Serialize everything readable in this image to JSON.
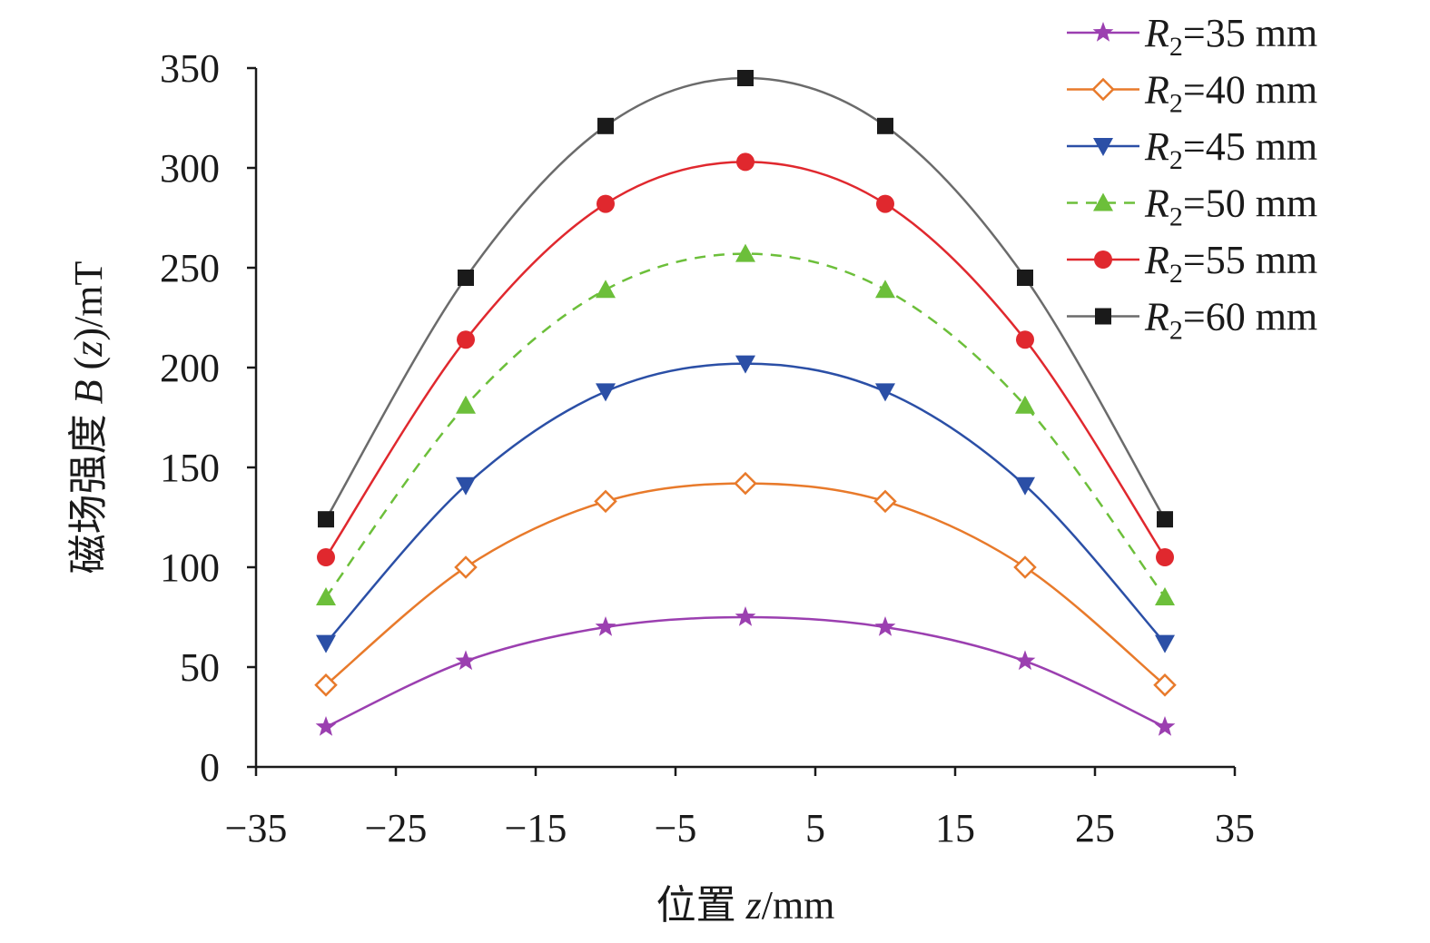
{
  "chart_data": {
    "type": "line",
    "title": "",
    "xlabel": "位置 z/mm",
    "xlabel_prefix": "位置 ",
    "xlabel_var": "z",
    "xlabel_unit": "/mm",
    "ylabel": "磁场强度 B (z)/mT",
    "ylabel_prefix": "磁场强度 ",
    "ylabel_var": "B",
    "ylabel_open": " (",
    "ylabel_var2": "z",
    "ylabel_unit": ")/mT",
    "xlim": [
      -35,
      35
    ],
    "ylim": [
      0,
      350
    ],
    "xticks": [
      -35,
      -25,
      -15,
      -5,
      5,
      15,
      25,
      35
    ],
    "yticks": [
      0,
      50,
      100,
      150,
      200,
      250,
      300,
      350
    ],
    "xtick_labels": [
      "−35",
      "−25",
      "−15",
      "−5",
      "5",
      "15",
      "25",
      "35"
    ],
    "ytick_labels": [
      "0",
      "50",
      "100",
      "150",
      "200",
      "250",
      "300",
      "350"
    ],
    "grid": false,
    "legend_position": "top-right",
    "x": [
      -30,
      -20,
      -10,
      0,
      10,
      20,
      30
    ],
    "series": [
      {
        "name": "R2=35 mm",
        "var": "R",
        "sub": "2",
        "rest": "=35 mm",
        "color": "#9b3fb0",
        "marker": "star",
        "dashed": false,
        "values": [
          20,
          53,
          70,
          75,
          70,
          53,
          20
        ]
      },
      {
        "name": "R2=40 mm",
        "var": "R",
        "sub": "2",
        "rest": "=40 mm",
        "color": "#e87a2b",
        "marker": "diamond-open",
        "dashed": false,
        "values": [
          41,
          100,
          133,
          142,
          133,
          100,
          41
        ]
      },
      {
        "name": "R2=45 mm",
        "var": "R",
        "sub": "2",
        "rest": "=45 mm",
        "color": "#2b4fa6",
        "marker": "triangle-down",
        "dashed": false,
        "values": [
          62,
          141,
          188,
          202,
          188,
          141,
          62
        ]
      },
      {
        "name": "R2=50 mm",
        "var": "R",
        "sub": "2",
        "rest": "=50 mm",
        "color": "#6cbf3a",
        "marker": "triangle-up",
        "dashed": true,
        "values": [
          85,
          181,
          239,
          257,
          239,
          181,
          85
        ]
      },
      {
        "name": "R2=55 mm",
        "var": "R",
        "sub": "2",
        "rest": "=55 mm",
        "color": "#e0282e",
        "marker": "circle",
        "dashed": false,
        "values": [
          105,
          214,
          282,
          303,
          282,
          214,
          105
        ]
      },
      {
        "name": "R2=60 mm",
        "var": "R",
        "sub": "2",
        "rest": "=60 mm",
        "color": "#1a1a1a",
        "line_color": "#6b6b6b",
        "marker": "square",
        "dashed": false,
        "values": [
          124,
          245,
          321,
          345,
          321,
          245,
          124
        ]
      }
    ]
  }
}
